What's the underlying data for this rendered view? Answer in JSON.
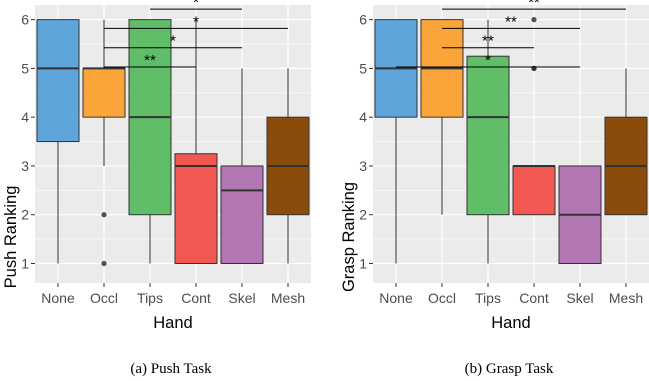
{
  "chart_data": [
    {
      "type": "box",
      "caption": "(a) Push Task",
      "xlabel": "Hand",
      "ylabel": "Push Ranking",
      "ylim": [
        0.6,
        6.3
      ],
      "yticks": [
        1,
        2,
        3,
        4,
        5,
        6
      ],
      "grid": true,
      "categories": [
        "None",
        "Occl",
        "Tips",
        "Cont",
        "Skel",
        "Mesh"
      ],
      "boxes": [
        {
          "category": "None",
          "whisker_low": 1,
          "q1": 3.5,
          "median": 5,
          "q3": 6,
          "whisker_high": 6,
          "outliers": [],
          "color": "#5DA5DA"
        },
        {
          "category": "Occl",
          "whisker_low": 3,
          "q1": 4,
          "median": 5,
          "q3": 5,
          "whisker_high": 6,
          "outliers": [
            2,
            1
          ],
          "color": "#FAA43A"
        },
        {
          "category": "Tips",
          "whisker_low": 1,
          "q1": 2,
          "median": 4,
          "q3": 6,
          "whisker_high": 6,
          "outliers": [],
          "color": "#60BD68"
        },
        {
          "category": "Cont",
          "whisker_low": 1,
          "q1": 1,
          "median": 3,
          "q3": 3.25,
          "whisker_high": 6,
          "outliers": [],
          "color": "#F15854"
        },
        {
          "category": "Skel",
          "whisker_low": 1,
          "q1": 1,
          "median": 2.5,
          "q3": 3,
          "whisker_high": 5,
          "outliers": [],
          "color": "#B276B2"
        },
        {
          "category": "Mesh",
          "whisker_low": 1,
          "q1": 2,
          "median": 3,
          "q3": 4,
          "whisker_high": 5,
          "outliers": [],
          "color": "#8B4C0B"
        }
      ],
      "significance": [
        {
          "from": "Occl",
          "to": "Cont",
          "label": "**"
        },
        {
          "from": "Occl",
          "to": "Skel",
          "label": "*"
        },
        {
          "from": "Occl",
          "to": "Mesh",
          "label": "*"
        },
        {
          "from": "Tips",
          "to": "Skel",
          "label": "*"
        }
      ]
    },
    {
      "type": "box",
      "caption": "(b) Grasp Task",
      "xlabel": "Hand",
      "ylabel": "Grasp Ranking",
      "ylim": [
        0.6,
        6.3
      ],
      "yticks": [
        1,
        2,
        3,
        4,
        5,
        6
      ],
      "grid": true,
      "categories": [
        "None",
        "Occl",
        "Tips",
        "Cont",
        "Skel",
        "Mesh"
      ],
      "boxes": [
        {
          "category": "None",
          "whisker_low": 1,
          "q1": 4,
          "median": 5,
          "q3": 6,
          "whisker_high": 6,
          "outliers": [],
          "color": "#5DA5DA"
        },
        {
          "category": "Occl",
          "whisker_low": 2,
          "q1": 4,
          "median": 5,
          "q3": 6,
          "whisker_high": 6,
          "outliers": [],
          "color": "#FAA43A"
        },
        {
          "category": "Tips",
          "whisker_low": 1,
          "q1": 2,
          "median": 4,
          "q3": 5.25,
          "whisker_high": 6,
          "outliers": [],
          "color": "#60BD68"
        },
        {
          "category": "Cont",
          "whisker_low": 2,
          "q1": 2,
          "median": 3,
          "q3": 3,
          "whisker_high": 3,
          "outliers": [
            6,
            5,
            5
          ],
          "color": "#F15854"
        },
        {
          "category": "Skel",
          "whisker_low": 1,
          "q1": 1,
          "median": 2,
          "q3": 3,
          "whisker_high": 3,
          "outliers": [],
          "color": "#B276B2"
        },
        {
          "category": "Mesh",
          "whisker_low": 2,
          "q1": 2,
          "median": 3,
          "q3": 4,
          "whisker_high": 5,
          "outliers": [],
          "color": "#8B4C0B"
        }
      ],
      "significance": [
        {
          "from": "None",
          "to": "Skel",
          "label": "*"
        },
        {
          "from": "Occl",
          "to": "Cont",
          "label": "**"
        },
        {
          "from": "Occl",
          "to": "Skel",
          "label": "**"
        },
        {
          "from": "Occl",
          "to": "Mesh",
          "label": "**"
        }
      ]
    }
  ],
  "colors": {
    "panel_background": "#EBEBEB",
    "grid": "#FFFFFF",
    "outline": "#333333"
  }
}
